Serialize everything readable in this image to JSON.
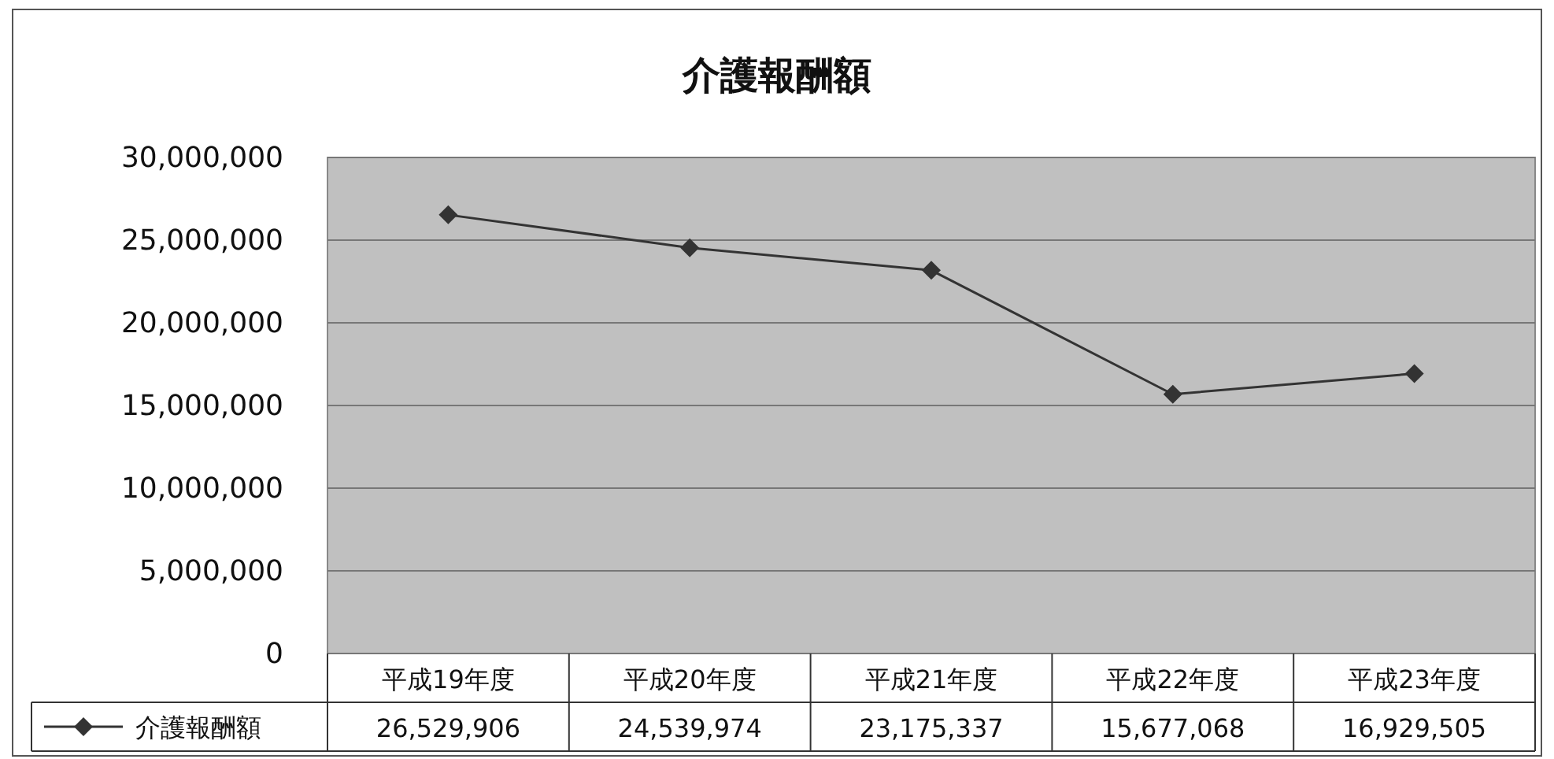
{
  "chart_data": {
    "type": "line",
    "title": "介護報酬額",
    "categories": [
      "平成19年度",
      "平成20年度",
      "平成21年度",
      "平成22年度",
      "平成23年度"
    ],
    "series": [
      {
        "name": "介護報酬額",
        "color": "#333333",
        "values": [
          26529906,
          24539974,
          23175337,
          15677068,
          16929505
        ],
        "value_labels": [
          "26,529,906",
          "24,539,974",
          "23,175,337",
          "15,677,068",
          "16,929,505"
        ]
      }
    ],
    "ylim": [
      0,
      30000000
    ],
    "yticks": [
      {
        "value": 0,
        "label": "0"
      },
      {
        "value": 5000000,
        "label": "5,000,000"
      },
      {
        "value": 10000000,
        "label": "10,000,000"
      },
      {
        "value": 15000000,
        "label": "15,000,000"
      },
      {
        "value": 20000000,
        "label": "20,000,000"
      },
      {
        "value": 25000000,
        "label": "25,000,000"
      },
      {
        "value": 30000000,
        "label": "30,000,000"
      }
    ],
    "grid": "y",
    "legend": "bottom",
    "marker": "diamond"
  }
}
